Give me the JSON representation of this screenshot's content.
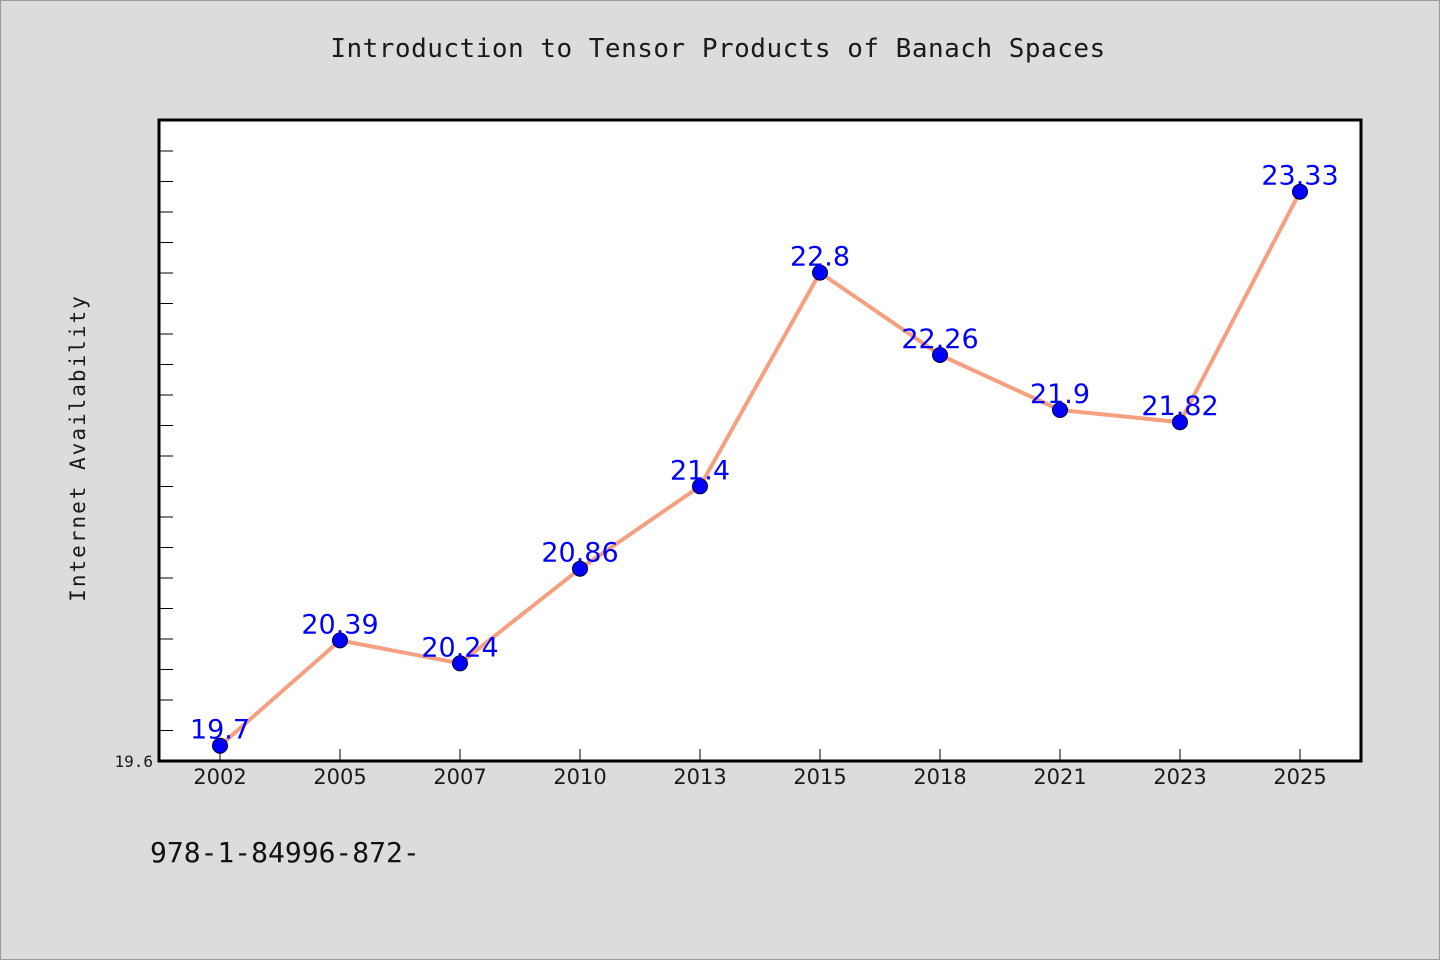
{
  "chart_data": {
    "type": "line",
    "title": "Introduction to Tensor Products of Banach Spaces",
    "xlabel": "",
    "ylabel": "Internet Availability",
    "categories": [
      "2002",
      "2005",
      "2007",
      "2010",
      "2013",
      "2015",
      "2018",
      "2021",
      "2023",
      "2025"
    ],
    "series": [
      {
        "values": [
          19.7,
          20.39,
          20.24,
          20.86,
          21.4,
          22.8,
          22.26,
          21.9,
          21.82,
          23.33
        ]
      }
    ],
    "data_labels": [
      "19.7",
      "20.39",
      "20.24",
      "20.86",
      "21.4",
      "22.8",
      "22.26",
      "21.9",
      "21.82",
      "23.33"
    ],
    "y_tick_labels": [
      "19.6"
    ],
    "ylim": [
      19.6,
      23.8
    ],
    "grid": false,
    "legend": "none",
    "colors": {
      "line": "#f4a081",
      "marker": "#0000ff",
      "label": "#0000ff",
      "background": "#dcdcdc",
      "plot_background": "#ffffff"
    }
  },
  "footnote": "978-1-84996-872-"
}
